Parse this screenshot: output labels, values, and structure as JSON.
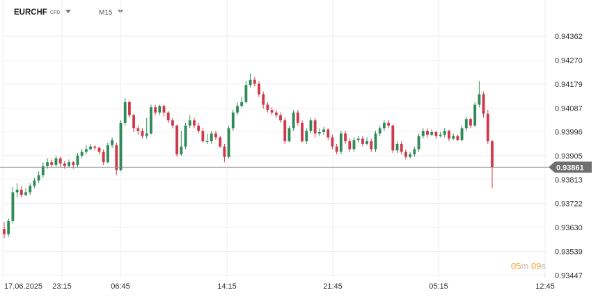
{
  "header": {
    "symbol": "EURCHF",
    "symbol_type": "CFD",
    "timeframe": "M15"
  },
  "colors": {
    "up": "#2e8b57",
    "down": "#d0394a",
    "grid": "#eeeeee",
    "price_line": "#8a8a8a",
    "price_tag_bg": "#6e6e6e",
    "countdown": "#f0a030"
  },
  "countdown": {
    "minutes": "05",
    "min_unit": "m",
    "seconds": "09",
    "sec_unit": "s"
  },
  "chart_data": {
    "type": "candlestick",
    "y_ticks": [
      "0.94362",
      "0.94270",
      "0.94179",
      "0.94087",
      "0.93996",
      "0.93905",
      "0.93813",
      "0.93722",
      "0.93630",
      "0.93539",
      "0.93447"
    ],
    "x_ticks": [
      "17.06.2025",
      "23:15",
      "06:45",
      "14:15",
      "21:45",
      "05:15",
      "12:45"
    ],
    "current_price": "0.93861",
    "ylim": [
      0.93447,
      0.94362
    ],
    "grid": true,
    "candles": [
      [
        0.93625,
        0.93605,
        0.9365,
        0.9359
      ],
      [
        0.93605,
        0.93655,
        0.93665,
        0.93595
      ],
      [
        0.93655,
        0.93765,
        0.93785,
        0.93645
      ],
      [
        0.93765,
        0.93775,
        0.938,
        0.93745
      ],
      [
        0.93775,
        0.93755,
        0.9379,
        0.93745
      ],
      [
        0.93755,
        0.93765,
        0.9378,
        0.9375
      ],
      [
        0.93765,
        0.9379,
        0.938,
        0.93755
      ],
      [
        0.9379,
        0.9381,
        0.9382,
        0.9378
      ],
      [
        0.9381,
        0.9383,
        0.93845,
        0.938
      ],
      [
        0.9383,
        0.93865,
        0.9388,
        0.9382
      ],
      [
        0.93865,
        0.9388,
        0.93895,
        0.93855
      ],
      [
        0.9388,
        0.9387,
        0.9389,
        0.9386
      ],
      [
        0.9387,
        0.93895,
        0.93905,
        0.9386
      ],
      [
        0.93895,
        0.93875,
        0.939,
        0.9386
      ],
      [
        0.93875,
        0.93865,
        0.93885,
        0.93855
      ],
      [
        0.93865,
        0.9388,
        0.9389,
        0.9386
      ],
      [
        0.9388,
        0.9387,
        0.93885,
        0.93855
      ],
      [
        0.9387,
        0.93905,
        0.93915,
        0.9386
      ],
      [
        0.93905,
        0.9392,
        0.9393,
        0.93895
      ],
      [
        0.9392,
        0.9393,
        0.93945,
        0.9391
      ],
      [
        0.9393,
        0.9394,
        0.9395,
        0.93925
      ],
      [
        0.9394,
        0.93935,
        0.93945,
        0.93925
      ],
      [
        0.93935,
        0.9392,
        0.9394,
        0.9391
      ],
      [
        0.9392,
        0.9388,
        0.9393,
        0.9387
      ],
      [
        0.9388,
        0.93945,
        0.93955,
        0.93875
      ],
      [
        0.93945,
        0.93965,
        0.93975,
        0.93935
      ],
      [
        0.93945,
        0.9385,
        0.93955,
        0.9383
      ],
      [
        0.9385,
        0.9403,
        0.9404,
        0.93845
      ],
      [
        0.9403,
        0.9411,
        0.94125,
        0.9402
      ],
      [
        0.9411,
        0.9406,
        0.94115,
        0.9405
      ],
      [
        0.9406,
        0.9401,
        0.94065,
        0.93995
      ],
      [
        0.9401,
        0.94,
        0.9402,
        0.93985
      ],
      [
        0.94,
        0.9398,
        0.9401,
        0.9397
      ],
      [
        0.9398,
        0.9399,
        0.9405,
        0.9397
      ],
      [
        0.9399,
        0.9409,
        0.941,
        0.93985
      ],
      [
        0.9409,
        0.9407,
        0.941,
        0.9406
      ],
      [
        0.9407,
        0.94095,
        0.941,
        0.9406
      ],
      [
        0.94095,
        0.9407,
        0.941,
        0.94055
      ],
      [
        0.9407,
        0.9404,
        0.94075,
        0.9403
      ],
      [
        0.9404,
        0.9402,
        0.9405,
        0.9401
      ],
      [
        0.9402,
        0.9391,
        0.94025,
        0.939
      ],
      [
        0.9391,
        0.9394,
        0.94,
        0.93905
      ],
      [
        0.9394,
        0.9402,
        0.9403,
        0.9393
      ],
      [
        0.9402,
        0.9404,
        0.9406,
        0.9401
      ],
      [
        0.9404,
        0.9402,
        0.9405,
        0.9401
      ],
      [
        0.9402,
        0.94,
        0.9403,
        0.9399
      ],
      [
        0.94,
        0.9396,
        0.9401,
        0.93955
      ],
      [
        0.9396,
        0.9396,
        0.9399,
        0.9395
      ],
      [
        0.9396,
        0.9399,
        0.94,
        0.9395
      ],
      [
        0.9399,
        0.93975,
        0.94,
        0.93965
      ],
      [
        0.93975,
        0.9394,
        0.9398,
        0.93935
      ],
      [
        0.9394,
        0.939,
        0.9395,
        0.9388
      ],
      [
        0.939,
        0.9401,
        0.9402,
        0.93895
      ],
      [
        0.9401,
        0.9407,
        0.9408,
        0.94
      ],
      [
        0.9407,
        0.94095,
        0.9411,
        0.9406
      ],
      [
        0.94095,
        0.9411,
        0.9413,
        0.9409
      ],
      [
        0.9411,
        0.94175,
        0.9419,
        0.94105
      ],
      [
        0.94175,
        0.94195,
        0.9422,
        0.94165
      ],
      [
        0.94195,
        0.9418,
        0.94205,
        0.9417
      ],
      [
        0.9418,
        0.9414,
        0.9419,
        0.9413
      ],
      [
        0.9414,
        0.941,
        0.9415,
        0.94085
      ],
      [
        0.941,
        0.9408,
        0.9411,
        0.9407
      ],
      [
        0.9408,
        0.9407,
        0.9409,
        0.9406
      ],
      [
        0.9407,
        0.9406,
        0.9408,
        0.9405
      ],
      [
        0.9406,
        0.9404,
        0.9407,
        0.9403
      ],
      [
        0.9404,
        0.9396,
        0.9405,
        0.9395
      ],
      [
        0.9396,
        0.9401,
        0.9402,
        0.93955
      ],
      [
        0.9401,
        0.9407,
        0.9408,
        0.94
      ],
      [
        0.9407,
        0.9403,
        0.9408,
        0.9402
      ],
      [
        0.9403,
        0.9396,
        0.9404,
        0.93955
      ],
      [
        0.9396,
        0.94,
        0.9401,
        0.9395
      ],
      [
        0.94,
        0.9404,
        0.9405,
        0.9399
      ],
      [
        0.9404,
        0.9399,
        0.9405,
        0.93975
      ],
      [
        0.9399,
        0.93995,
        0.9401,
        0.9398
      ],
      [
        0.93995,
        0.94005,
        0.94015,
        0.93985
      ],
      [
        0.94005,
        0.93975,
        0.9401,
        0.93965
      ],
      [
        0.93975,
        0.9394,
        0.93985,
        0.9393
      ],
      [
        0.9394,
        0.9392,
        0.9395,
        0.9391
      ],
      [
        0.9392,
        0.9399,
        0.94,
        0.9391
      ],
      [
        0.9399,
        0.9396,
        0.94,
        0.9395
      ],
      [
        0.9396,
        0.9393,
        0.9397,
        0.9392
      ],
      [
        0.9393,
        0.93965,
        0.93975,
        0.9392
      ],
      [
        0.93965,
        0.9397,
        0.9398,
        0.93955
      ],
      [
        0.9397,
        0.9395,
        0.9398,
        0.9394
      ],
      [
        0.9395,
        0.9396,
        0.93975,
        0.93945
      ],
      [
        0.9396,
        0.9393,
        0.9397,
        0.9392
      ],
      [
        0.9393,
        0.9399,
        0.94,
        0.9392
      ],
      [
        0.9399,
        0.9401,
        0.9402,
        0.9398
      ],
      [
        0.9401,
        0.9403,
        0.9404,
        0.94
      ],
      [
        0.9403,
        0.9402,
        0.9404,
        0.9401
      ],
      [
        0.9402,
        0.93925,
        0.94025,
        0.93915
      ],
      [
        0.93925,
        0.9395,
        0.9396,
        0.93915
      ],
      [
        0.9395,
        0.9392,
        0.9396,
        0.9391
      ],
      [
        0.9392,
        0.939,
        0.9393,
        0.9389
      ],
      [
        0.939,
        0.9391,
        0.9392,
        0.93895
      ],
      [
        0.9391,
        0.9393,
        0.9394,
        0.939
      ],
      [
        0.9393,
        0.9398,
        0.9399,
        0.9392
      ],
      [
        0.9398,
        0.94,
        0.9401,
        0.9397
      ],
      [
        0.94,
        0.93985,
        0.9401,
        0.93975
      ],
      [
        0.93985,
        0.93995,
        0.94005,
        0.9398
      ],
      [
        0.93995,
        0.9398,
        0.94,
        0.9397
      ],
      [
        0.9398,
        0.93985,
        0.93995,
        0.93975
      ],
      [
        0.93985,
        0.94,
        0.9401,
        0.93975
      ],
      [
        0.94,
        0.9397,
        0.94005,
        0.9396
      ],
      [
        0.9397,
        0.9398,
        0.9399,
        0.93965
      ],
      [
        0.9398,
        0.93965,
        0.93985,
        0.9396
      ],
      [
        0.93965,
        0.9401,
        0.9402,
        0.9396
      ],
      [
        0.9401,
        0.94045,
        0.94055,
        0.94
      ],
      [
        0.94045,
        0.9402,
        0.9405,
        0.9401
      ],
      [
        0.9402,
        0.941,
        0.9411,
        0.94015
      ],
      [
        0.941,
        0.9414,
        0.9419,
        0.9409
      ],
      [
        0.9414,
        0.94065,
        0.9415,
        0.9405
      ],
      [
        0.94065,
        0.9396,
        0.9408,
        0.9395
      ],
      [
        0.9396,
        0.93861,
        0.93965,
        0.9378
      ]
    ]
  }
}
